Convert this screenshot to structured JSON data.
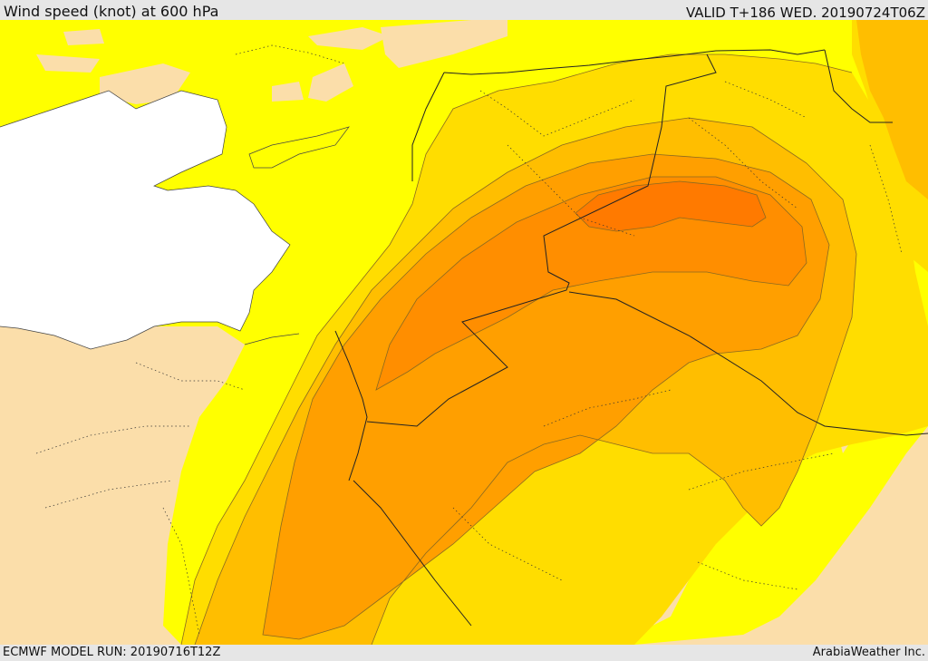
{
  "header": {
    "title": "Wind speed (knot) at 600 hPa",
    "valid": "VALID T+186 WED. 20190724T06Z"
  },
  "footer": {
    "model_run": "ECMWF MODEL RUN: 20190716T12Z",
    "credit": "ArabiaWeather Inc."
  },
  "colors": {
    "land": "#fbdeaa",
    "sea": "#ffffff",
    "band_1": "#ffff00",
    "band_2": "#ffdd00",
    "band_3": "#ffbe00",
    "band_4": "#ff9f00",
    "band_5": "#ff7f00"
  }
}
